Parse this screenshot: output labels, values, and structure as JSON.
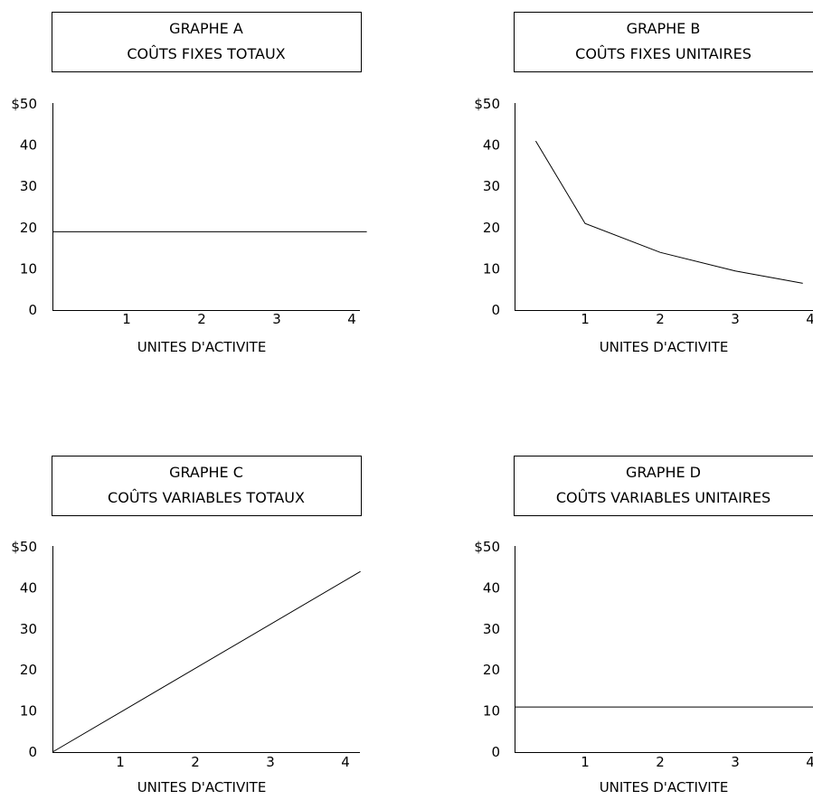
{
  "chart_data": [
    {
      "type": "line",
      "title_line1": "GRAPHE A",
      "title_line2": "COÛTS FIXES TOTAUX",
      "xlabel": "UNITES D'ACTIVITE",
      "y_ticks": [
        "0",
        "10",
        "20",
        "30",
        "40",
        "$50"
      ],
      "x_ticks": [
        "1",
        "2",
        "3",
        "4"
      ],
      "xlim": [
        0,
        4.2
      ],
      "ylim": [
        0,
        50
      ],
      "x": [
        0,
        4.2
      ],
      "y": [
        19,
        19
      ]
    },
    {
      "type": "line",
      "title_line1": "GRAPHE B",
      "title_line2": "COÛTS FIXES UNITAIRES",
      "xlabel": "UNITES D'ACTIVITE",
      "y_ticks": [
        "0",
        "10",
        "20",
        "30",
        "40",
        "$50"
      ],
      "x_ticks": [
        "1",
        "2",
        "3",
        "4"
      ],
      "xlim": [
        0,
        4.2
      ],
      "ylim": [
        0,
        50
      ],
      "x": [
        0.3,
        1,
        2,
        3,
        3.9
      ],
      "y": [
        41,
        21,
        14,
        9.5,
        6.5
      ]
    },
    {
      "type": "line",
      "title_line1": "GRAPHE C",
      "title_line2": "COÛTS VARIABLES TOTAUX",
      "xlabel": "UNITES D'ACTIVITE",
      "y_ticks": [
        "0",
        "10",
        "20",
        "30",
        "40",
        "$50"
      ],
      "x_ticks": [
        "1",
        "2",
        "3",
        "4"
      ],
      "xlim": [
        0,
        4.2
      ],
      "ylim": [
        0,
        50
      ],
      "x": [
        0,
        4.2
      ],
      "y": [
        0,
        44
      ]
    },
    {
      "type": "line",
      "title_line1": "GRAPHE D",
      "title_line2": "COÛTS VARIABLES UNITAIRES",
      "xlabel": "UNITES D'ACTIVITE",
      "y_ticks": [
        "0",
        "10",
        "20",
        "30",
        "40",
        "$50"
      ],
      "x_ticks": [
        "1",
        "2",
        "3",
        "4"
      ],
      "xlim": [
        0,
        4.2
      ],
      "ylim": [
        0,
        50
      ],
      "x": [
        0,
        4.2
      ],
      "y": [
        11,
        11
      ]
    }
  ]
}
